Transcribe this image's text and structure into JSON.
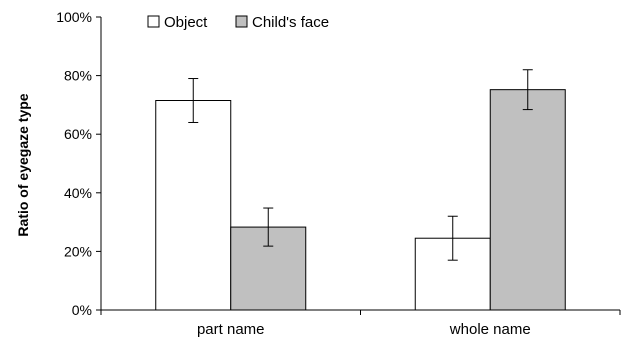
{
  "chart_data": {
    "type": "bar",
    "title": "",
    "xlabel": "",
    "ylabel": "Ratio of eyegaze type",
    "categories": [
      "part name",
      "whole name"
    ],
    "series": [
      {
        "name": "Object",
        "values": [
          0.715,
          0.245
        ],
        "error": [
          0.075,
          0.075
        ],
        "color": "#ffffff"
      },
      {
        "name": "Child's face",
        "values": [
          0.283,
          0.752
        ],
        "error": [
          0.065,
          0.068
        ],
        "color": "#c0c0c0"
      }
    ],
    "ylim": [
      0,
      1
    ],
    "yticks": [
      "0%",
      "20%",
      "40%",
      "60%",
      "80%",
      "100%"
    ],
    "grid": false,
    "legend_position": "top-left"
  }
}
